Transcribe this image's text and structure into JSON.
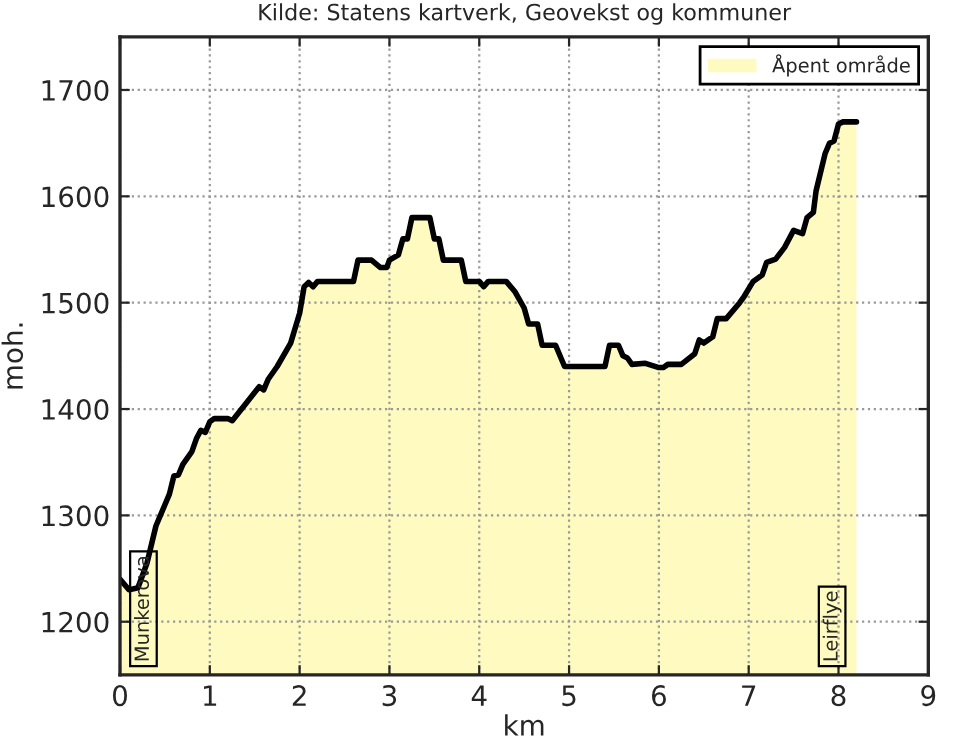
{
  "chart_data": {
    "type": "area",
    "title": "Kilde: Statens kartverk, Geovekst og kommuner",
    "xlabel": "km",
    "ylabel": "moh.",
    "x": [
      0,
      0.1,
      0.2,
      0.3,
      0.4,
      0.5,
      0.55,
      0.6,
      0.65,
      0.7,
      0.8,
      0.85,
      0.9,
      0.95,
      1.0,
      1.05,
      1.2,
      1.25,
      1.4,
      1.55,
      1.6,
      1.65,
      1.75,
      1.9,
      2.0,
      2.05,
      2.1,
      2.15,
      2.2,
      2.6,
      2.65,
      2.8,
      2.9,
      2.97,
      3.0,
      3.1,
      3.15,
      3.2,
      3.25,
      3.45,
      3.5,
      3.55,
      3.6,
      3.8,
      3.85,
      4.0,
      4.05,
      4.1,
      4.3,
      4.4,
      4.5,
      4.55,
      4.65,
      4.7,
      4.85,
      4.95,
      5.4,
      5.45,
      5.55,
      5.6,
      5.65,
      5.7,
      5.85,
      6.0,
      6.05,
      6.1,
      6.25,
      6.4,
      6.45,
      6.5,
      6.6,
      6.65,
      6.75,
      6.9,
      6.95,
      7.05,
      7.15,
      7.2,
      7.3,
      7.4,
      7.5,
      7.6,
      7.65,
      7.72,
      7.75,
      7.85,
      7.9,
      7.95,
      8.0,
      8.05,
      8.2
    ],
    "series": [
      {
        "name": "Åpent område",
        "color": "#fffbc0",
        "values": [
          1240,
          1230,
          1232,
          1255,
          1290,
          1310,
          1320,
          1337,
          1338,
          1348,
          1360,
          1372,
          1380,
          1378,
          1388,
          1391,
          1391,
          1389,
          1405,
          1421,
          1418,
          1428,
          1440,
          1462,
          1490,
          1515,
          1519,
          1515,
          1520,
          1520,
          1540,
          1540,
          1533,
          1533,
          1540,
          1545,
          1560,
          1560,
          1580,
          1580,
          1560,
          1560,
          1540,
          1540,
          1520,
          1520,
          1515,
          1520,
          1520,
          1510,
          1495,
          1480,
          1480,
          1460,
          1460,
          1440,
          1440,
          1460,
          1460,
          1450,
          1448,
          1442,
          1443,
          1439,
          1439,
          1442,
          1442,
          1452,
          1465,
          1462,
          1468,
          1485,
          1485,
          1500,
          1506,
          1520,
          1526,
          1538,
          1541,
          1552,
          1568,
          1565,
          1580,
          1585,
          1605,
          1640,
          1650,
          1652,
          1668,
          1670,
          1670
        ]
      }
    ],
    "xlim": [
      0,
      9
    ],
    "xticks": [
      0,
      1,
      2,
      3,
      4,
      5,
      6,
      7,
      8,
      9
    ],
    "ylim": [
      1150,
      1750
    ],
    "yticks": [
      1200,
      1300,
      1400,
      1500,
      1600,
      1700
    ],
    "annotations": [
      "Munkerova",
      "Leirflye"
    ],
    "grid": true,
    "legend": "top right",
    "line_style": "solid"
  }
}
